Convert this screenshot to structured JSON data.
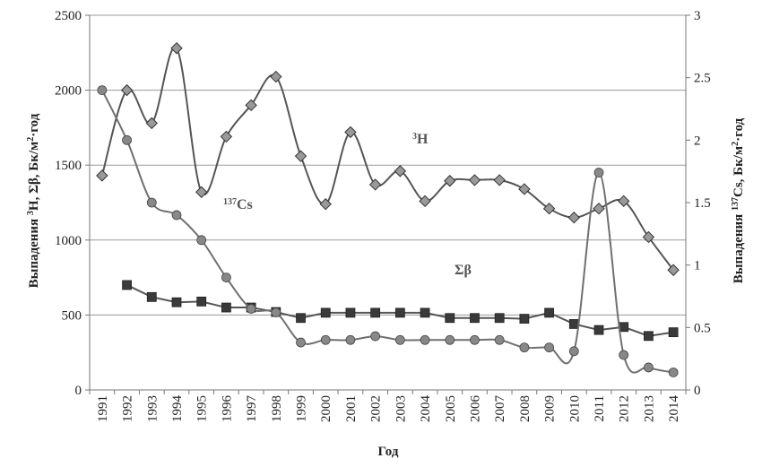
{
  "chart_data": {
    "type": "line",
    "xlabel": "Год",
    "ylabel_left": {
      "prefix": "Выпадения ",
      "sup1": "3",
      "mid": "H, Σβ, Бк/м",
      "sup2": "2",
      "suffix": "·год"
    },
    "ylabel_right": {
      "prefix": "Выпадения ",
      "sup1": "137",
      "mid": "Cs, Бк/м",
      "sup2": "2",
      "suffix": "·год"
    },
    "ylim_left": [
      0,
      2500
    ],
    "ylim_right": [
      0,
      3
    ],
    "yticks_left": [
      "0",
      "500",
      "1000",
      "1500",
      "2000",
      "2500"
    ],
    "yticks_right": [
      "0",
      "0.5",
      "1",
      "1.5",
      "2",
      "2.5",
      "3"
    ],
    "x": [
      "1991",
      "1992",
      "1993",
      "1994",
      "1995",
      "1996",
      "1997",
      "1998",
      "1999",
      "2000",
      "2001",
      "2002",
      "2003",
      "2004",
      "2005",
      "2006",
      "2007",
      "2008",
      "2009",
      "2010",
      "2011",
      "2012",
      "2013",
      "2014"
    ],
    "grid": "horizontal",
    "series": [
      {
        "key": "h3",
        "axis": "left",
        "marker": "diamond",
        "color": "#999999",
        "stroke": "#555555",
        "smooth": true,
        "values": [
          1430,
          2000,
          1780,
          2280,
          1320,
          1690,
          1900,
          2090,
          1560,
          1240,
          1720,
          1370,
          1460,
          1260,
          1395,
          1400,
          1400,
          1340,
          1210,
          1150,
          1210,
          1260,
          1020,
          800
        ]
      },
      {
        "key": "sum_beta",
        "axis": "left",
        "marker": "square",
        "color": "#3a3a3a",
        "stroke": "#555555",
        "smooth": false,
        "values": [
          null,
          700,
          620,
          585,
          590,
          550,
          550,
          520,
          480,
          515,
          515,
          515,
          515,
          515,
          480,
          480,
          480,
          475,
          515,
          440,
          400,
          420,
          360,
          385
        ]
      },
      {
        "key": "cs137",
        "axis": "right",
        "marker": "circle",
        "color": "#888888",
        "stroke": "#707070",
        "smooth": true,
        "values": [
          2.4,
          2.0,
          1.5,
          1.4,
          1.2,
          0.9,
          0.65,
          0.62,
          0.38,
          0.4,
          0.4,
          0.43,
          0.4,
          0.4,
          0.4,
          0.4,
          0.4,
          0.34,
          0.34,
          0.31,
          1.74,
          0.28,
          0.18,
          0.14
        ]
      }
    ],
    "annotations": {
      "h3": {
        "sup": "3",
        "text": "H"
      },
      "cs137": {
        "sup": "137",
        "text": "Cs"
      },
      "sum_beta": {
        "text": "Σβ"
      }
    }
  }
}
